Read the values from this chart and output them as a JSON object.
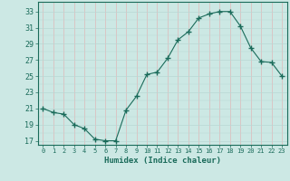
{
  "x": [
    0,
    1,
    2,
    3,
    4,
    5,
    6,
    7,
    8,
    9,
    10,
    11,
    12,
    13,
    14,
    15,
    16,
    17,
    18,
    19,
    20,
    21,
    22,
    23
  ],
  "y": [
    21.0,
    20.5,
    20.3,
    19.0,
    18.5,
    17.2,
    17.0,
    17.0,
    20.8,
    22.5,
    25.2,
    25.5,
    27.2,
    29.5,
    30.5,
    32.2,
    32.7,
    33.0,
    33.0,
    31.2,
    28.5,
    26.8,
    26.7,
    25.0
  ],
  "xlabel": "Humidex (Indice chaleur)",
  "ylim": [
    16.5,
    34.2
  ],
  "xlim": [
    -0.5,
    23.5
  ],
  "yticks": [
    17,
    19,
    21,
    23,
    25,
    27,
    29,
    31,
    33
  ],
  "xticks": [
    0,
    1,
    2,
    3,
    4,
    5,
    6,
    7,
    8,
    9,
    10,
    11,
    12,
    13,
    14,
    15,
    16,
    17,
    18,
    19,
    20,
    21,
    22,
    23
  ],
  "line_color": "#1a6b5a",
  "marker_color": "#1a6b5a",
  "bg_color": "#cce8e4",
  "grid_color_v": "#e0b8b8",
  "grid_color_h": "#b8d8d4"
}
